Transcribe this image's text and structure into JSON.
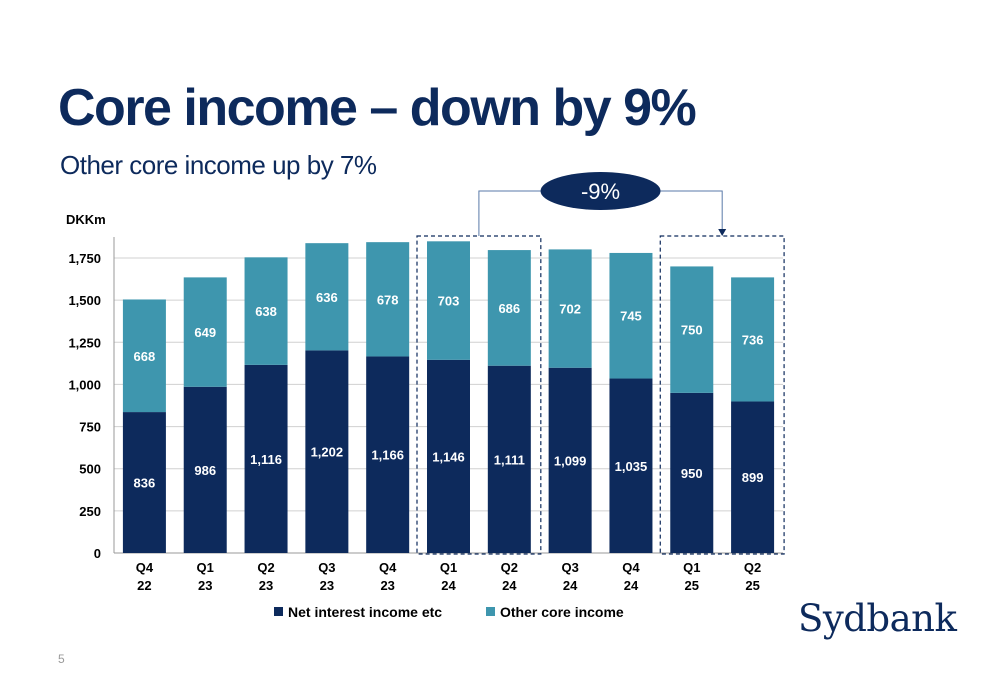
{
  "slide": {
    "title": "Core income – down by 9%",
    "subtitle": "Other core income up by 7%",
    "page_number": "5",
    "logo_text": "Sydbank"
  },
  "colors": {
    "net_interest": "#0d2a5c",
    "other_core": "#3e96ae",
    "grid": "#d0d0d0",
    "axis_text": "#000000",
    "bubble": "#0d2a5c"
  },
  "chart_data": {
    "type": "bar",
    "stacked": true,
    "ylabel": "DKKm",
    "ylim": [
      0,
      1850
    ],
    "yticks": [
      0,
      250,
      500,
      750,
      1000,
      1250,
      1500,
      1750
    ],
    "ytick_labels": [
      "0",
      "250",
      "500",
      "750",
      "1,000",
      "1,250",
      "1,500",
      "1,750"
    ],
    "categories": [
      [
        "Q4",
        "22"
      ],
      [
        "Q1",
        "23"
      ],
      [
        "Q2",
        "23"
      ],
      [
        "Q3",
        "23"
      ],
      [
        "Q4",
        "23"
      ],
      [
        "Q1",
        "24"
      ],
      [
        "Q2",
        "24"
      ],
      [
        "Q3",
        "24"
      ],
      [
        "Q4",
        "24"
      ],
      [
        "Q1",
        "25"
      ],
      [
        "Q2",
        "25"
      ]
    ],
    "series": [
      {
        "name": "Net interest income etc",
        "values": [
          836,
          986,
          1116,
          1202,
          1166,
          1146,
          1111,
          1099,
          1035,
          950,
          899
        ],
        "labels": [
          "836",
          "986",
          "1,116",
          "1,202",
          "1,166",
          "1,146",
          "1,111",
          "1,099",
          "1,035",
          "950",
          "899"
        ]
      },
      {
        "name": "Other core income",
        "values": [
          668,
          649,
          638,
          636,
          678,
          703,
          686,
          702,
          745,
          750,
          736
        ],
        "labels": [
          "668",
          "649",
          "638",
          "636",
          "678",
          "703",
          "686",
          "702",
          "745",
          "750",
          "736"
        ]
      }
    ],
    "legend_position": "bottom",
    "grid": true,
    "annotation": {
      "text": "-9%",
      "from_categories": [
        5,
        6
      ],
      "to_categories": [
        9,
        10
      ]
    }
  }
}
